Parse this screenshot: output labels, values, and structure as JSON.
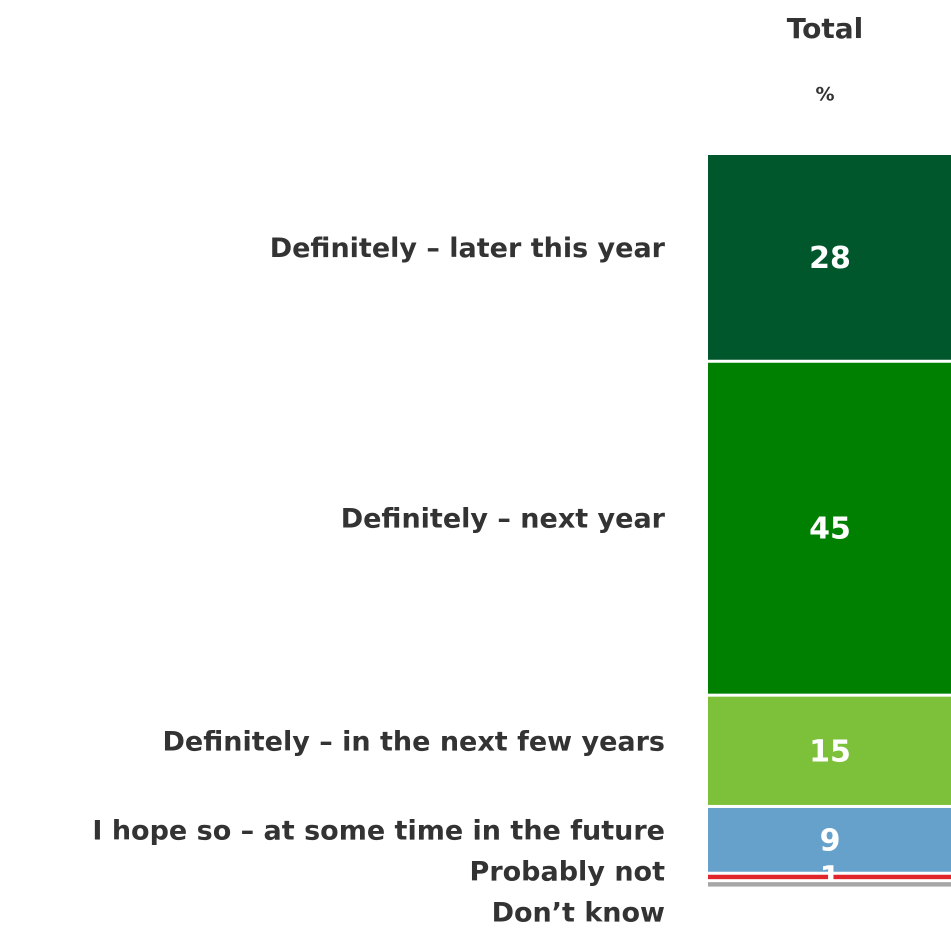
{
  "chart_data": {
    "type": "stacked-bar",
    "header": "Total",
    "unit": "%",
    "categories": [
      "Definitely – later this year",
      "Definitely – next year",
      "Definitely – in the next  few years",
      "I hope so – at some time in the future",
      "Probably  not",
      "Don’t know"
    ],
    "series": [
      {
        "name": "Total",
        "values": [
          28,
          45,
          15,
          9,
          1,
          1
        ],
        "value_labels": [
          "28",
          "45",
          "15",
          "9",
          "1",
          null
        ],
        "colors": [
          "#00572b",
          "#008000",
          "#7dc13a",
          "#65a1cb",
          "#e0262a",
          "#a6a6a6"
        ]
      }
    ],
    "ylim": [
      0,
      100
    ]
  }
}
